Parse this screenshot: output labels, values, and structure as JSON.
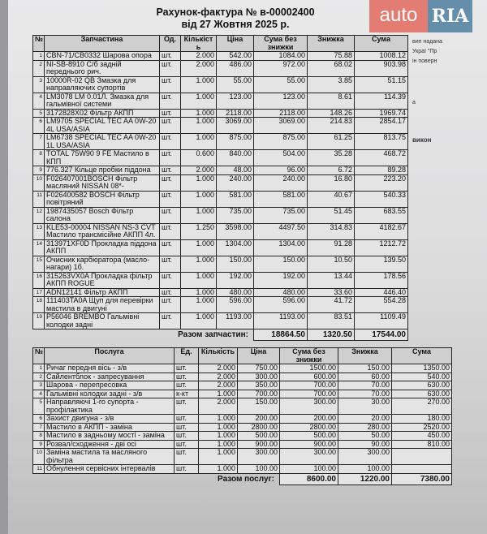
{
  "header": {
    "title": "Рахунок-фактура № в-00002400",
    "date": "від 27 Жовтня 2025 р."
  },
  "watermark": {
    "auto": "auto",
    "ria": "RIA"
  },
  "right_fragments": [
    "вип надана",
    "Украї \"Пр",
    "ін поверн",
    "а",
    "викон"
  ],
  "parts": {
    "columns": [
      "№",
      "Запчастина",
      "Од.",
      "Кількість",
      "Ціна",
      "Сума без знижки",
      "Знижка",
      "Сума"
    ],
    "rows": [
      [
        "1",
        "CBN-71/CB0332  Шарова опора",
        "шт.",
        "2.000",
        "542.00",
        "1084.00",
        "75.88",
        "1008.12"
      ],
      [
        "2",
        "NI-SB-8910 С/б задній переднього рич.",
        "шт.",
        "2.000",
        "486.00",
        "972.00",
        "68.02",
        "903.98"
      ],
      [
        "3",
        "10000R-02 QB Змазка для направляючих супортів",
        "шт.",
        "1.000",
        "55.00",
        "55.00",
        "3.85",
        "51.15"
      ],
      [
        "4",
        "LM3078 LM 0.01Л. Змазка для гальмівної системи",
        "шт.",
        "1.000",
        "123.00",
        "123.00",
        "8.61",
        "114.39"
      ],
      [
        "5",
        "3172828X02 Фільтр АКПП",
        "шт.",
        "1.000",
        "2118.00",
        "2118.00",
        "148.26",
        "1969.74"
      ],
      [
        "6",
        "LM9705  SPECIAL TEC AA 0W-20 4L  USA/ASIA",
        "шт.",
        "1.000",
        "3069.00",
        "3069.00",
        "214.83",
        "2854.17"
      ],
      [
        "7",
        "LM6738  SPECIAL TEC AA 0W-20 1L  USA/ASIA",
        "шт.",
        "1.000",
        "875.00",
        "875.00",
        "61.25",
        "813.75"
      ],
      [
        "8",
        "TOTAL 75W90 9 FE Мастило в КПП",
        "шт.",
        "0.600",
        "840.00",
        "504.00",
        "35.28",
        "468.72"
      ],
      [
        "9",
        "776.327 Кільце пробки піддона",
        "шт.",
        "2.000",
        "48.00",
        "96.00",
        "6.72",
        "89.28"
      ],
      [
        "10",
        "F026407001BOSCH Фільтр масляний NISSAN 08*-",
        "шт.",
        "1.000",
        "240.00",
        "240.00",
        "16.80",
        "223.20"
      ],
      [
        "11",
        "F026400582 BOSCH Фільтр повітряний",
        "шт.",
        "1.000",
        "581.00",
        "581.00",
        "40.67",
        "540.33"
      ],
      [
        "12",
        "1987435057 Bosch Фільтр салона",
        "шт.",
        "1.000",
        "735.00",
        "735.00",
        "51.45",
        "683.55"
      ],
      [
        "13",
        "KLE53-00004 NISSAN NS-3 CVT Мастило трансмісійне АКПП 4л.",
        "шт.",
        "1.250",
        "3598.00",
        "4497.50",
        "314.83",
        "4182.67"
      ],
      [
        "14",
        "313971XF0D Прокладка піддона АКПП",
        "шт.",
        "1.000",
        "1304.00",
        "1304.00",
        "91.28",
        "1212.72"
      ],
      [
        "15",
        "Очисник карбюратора (масло-нагари) 1б.",
        "шт.",
        "1.000",
        "150.00",
        "150.00",
        "10.50",
        "139.50"
      ],
      [
        "16",
        "315263VX0A Прокладка фільтр АКПП ROGUE",
        "шт.",
        "1.000",
        "192.00",
        "192.00",
        "13.44",
        "178.56"
      ],
      [
        "17",
        "ADN12141 Фільтр АКПП",
        "шт.",
        "1.000",
        "480.00",
        "480.00",
        "33.60",
        "446.40"
      ],
      [
        "18",
        "111403TA0A Щуп для перевірки мастила в двигуні",
        "шт.",
        "1.000",
        "596.00",
        "596.00",
        "41.72",
        "554.28"
      ],
      [
        "19",
        "P56046 BREMBO Гальмівні колодки задні",
        "шт.",
        "1.000",
        "1193.00",
        "1193.00",
        "83.51",
        "1109.49"
      ]
    ],
    "total_label": "Разом  запчастин:",
    "total_without_discount": "18864.50",
    "total_discount": "1320.50",
    "total": "17544.00"
  },
  "services": {
    "columns": [
      "№",
      "Послуга",
      "Ед.",
      "Кількість",
      "Ціна",
      "Сума без знижки",
      "Знижка",
      "Сума"
    ],
    "rows": [
      [
        "1",
        "Ричаг передня вісь - з/в",
        "шт.",
        "2.000",
        "750.00",
        "1500.00",
        "150.00",
        "1350.00"
      ],
      [
        "2",
        "Сайлентблок - запресування",
        "шт.",
        "2.000",
        "300.00",
        "600.00",
        "60.00",
        "540.00"
      ],
      [
        "3",
        "Шарова - перепресовка",
        "шт.",
        "2.000",
        "350.00",
        "700.00",
        "70.00",
        "630.00"
      ],
      [
        "4",
        "Гальмівні колодки задні - з/в",
        "к-кт",
        "1.000",
        "700.00",
        "700.00",
        "70.00",
        "630.00"
      ],
      [
        "5",
        "Направляючі 1-го супорта - профілактика",
        "шт.",
        "2.000",
        "150.00",
        "300.00",
        "30.00",
        "270.00"
      ],
      [
        "6",
        "Захист двигуна - з/в",
        "шт.",
        "1.000",
        "200.00",
        "200.00",
        "20.00",
        "180.00"
      ],
      [
        "7",
        "Мастило в АКПП - заміна",
        "шт.",
        "1.000",
        "2800.00",
        "2800.00",
        "280.00",
        "2520.00"
      ],
      [
        "8",
        "Мастило в задньому мості - заміна",
        "шт.",
        "1.000",
        "500.00",
        "500.00",
        "50.00",
        "450.00"
      ],
      [
        "9",
        "Розвал/сходження - дві осі",
        "шт.",
        "1.000",
        "900.00",
        "900.00",
        "90.00",
        "810.00"
      ],
      [
        "10",
        "Заміна мастила та масляного фільтра",
        "шт.",
        "1.000",
        "300.00",
        "300.00",
        "300.00",
        ""
      ],
      [
        "11",
        "Обнулення сервісних інтервалів",
        "шт.",
        "1.000",
        "100.00",
        "100.00",
        "100.00",
        ""
      ]
    ],
    "total_label": "Разом послуг:",
    "total_without_discount": "8600.00",
    "total_discount": "1220.00",
    "total": "7380.00"
  }
}
